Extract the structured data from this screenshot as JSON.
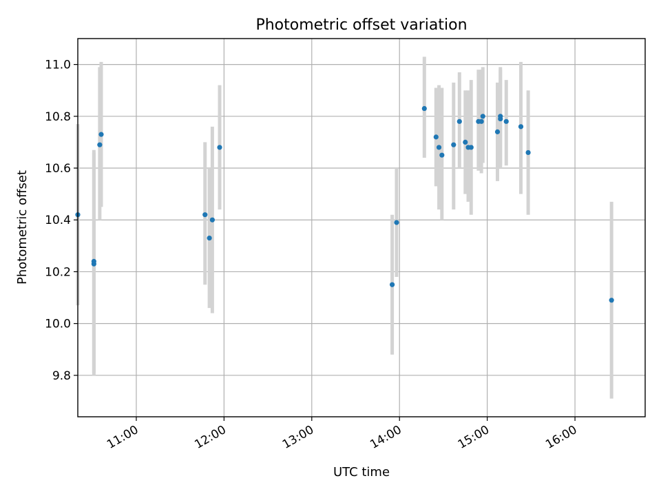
{
  "chart_data": {
    "type": "scatter",
    "title": "Photometric offset variation",
    "xlabel": "UTC time",
    "ylabel": "Photometric offset",
    "x_unit": "UTC time (HH:MM)",
    "xlim": [
      "10:31",
      "16:48"
    ],
    "ylim": [
      9.64,
      11.1
    ],
    "x_ticks": [
      "11:00",
      "12:00",
      "13:00",
      "14:00",
      "15:00",
      "16:00"
    ],
    "y_ticks": [
      9.8,
      10.0,
      10.2,
      10.4,
      10.6,
      10.8,
      11.0
    ],
    "grid": true,
    "colors": {
      "point": "#1f77b4",
      "errorbar": "#d3d3d3"
    },
    "series": [
      {
        "points": [
          {
            "x": "10:20",
            "y": 10.42,
            "lo": 10.07,
            "hi": 10.77
          },
          {
            "x": "10:31",
            "y": 10.23,
            "lo": 9.8,
            "hi": 10.66
          },
          {
            "x": "10:31",
            "y": 10.24,
            "lo": 9.81,
            "hi": 10.67
          },
          {
            "x": "10:35",
            "y": 10.69,
            "lo": 10.4,
            "hi": 10.99
          },
          {
            "x": "10:36",
            "y": 10.73,
            "lo": 10.45,
            "hi": 11.01
          },
          {
            "x": "11:47",
            "y": 10.42,
            "lo": 10.15,
            "hi": 10.7
          },
          {
            "x": "11:50",
            "y": 10.33,
            "lo": 10.06,
            "hi": 10.6
          },
          {
            "x": "11:52",
            "y": 10.4,
            "lo": 10.04,
            "hi": 10.76
          },
          {
            "x": "11:57",
            "y": 10.68,
            "lo": 10.44,
            "hi": 10.92
          },
          {
            "x": "13:55",
            "y": 10.15,
            "lo": 9.88,
            "hi": 10.42
          },
          {
            "x": "13:58",
            "y": 10.39,
            "lo": 10.18,
            "hi": 10.6
          },
          {
            "x": "14:17",
            "y": 10.83,
            "lo": 10.64,
            "hi": 11.03
          },
          {
            "x": "14:25",
            "y": 10.72,
            "lo": 10.53,
            "hi": 10.91
          },
          {
            "x": "14:27",
            "y": 10.68,
            "lo": 10.44,
            "hi": 10.92
          },
          {
            "x": "14:29",
            "y": 10.65,
            "lo": 10.4,
            "hi": 10.91
          },
          {
            "x": "14:37",
            "y": 10.69,
            "lo": 10.44,
            "hi": 10.93
          },
          {
            "x": "14:41",
            "y": 10.78,
            "lo": 10.6,
            "hi": 10.97
          },
          {
            "x": "14:45",
            "y": 10.7,
            "lo": 10.5,
            "hi": 10.9
          },
          {
            "x": "14:47",
            "y": 10.68,
            "lo": 10.47,
            "hi": 10.9
          },
          {
            "x": "14:49",
            "y": 10.68,
            "lo": 10.42,
            "hi": 10.94
          },
          {
            "x": "14:54",
            "y": 10.78,
            "lo": 10.59,
            "hi": 10.98
          },
          {
            "x": "14:56",
            "y": 10.78,
            "lo": 10.58,
            "hi": 10.98
          },
          {
            "x": "14:57",
            "y": 10.8,
            "lo": 10.62,
            "hi": 10.99
          },
          {
            "x": "15:07",
            "y": 10.74,
            "lo": 10.55,
            "hi": 10.93
          },
          {
            "x": "15:09",
            "y": 10.79,
            "lo": 10.6,
            "hi": 10.98
          },
          {
            "x": "15:09",
            "y": 10.8,
            "lo": 10.61,
            "hi": 10.99
          },
          {
            "x": "15:13",
            "y": 10.78,
            "lo": 10.61,
            "hi": 10.94
          },
          {
            "x": "15:23",
            "y": 10.76,
            "lo": 10.5,
            "hi": 11.01
          },
          {
            "x": "15:28",
            "y": 10.66,
            "lo": 10.42,
            "hi": 10.9
          },
          {
            "x": "16:25",
            "y": 10.09,
            "lo": 9.71,
            "hi": 10.47
          }
        ]
      }
    ]
  }
}
